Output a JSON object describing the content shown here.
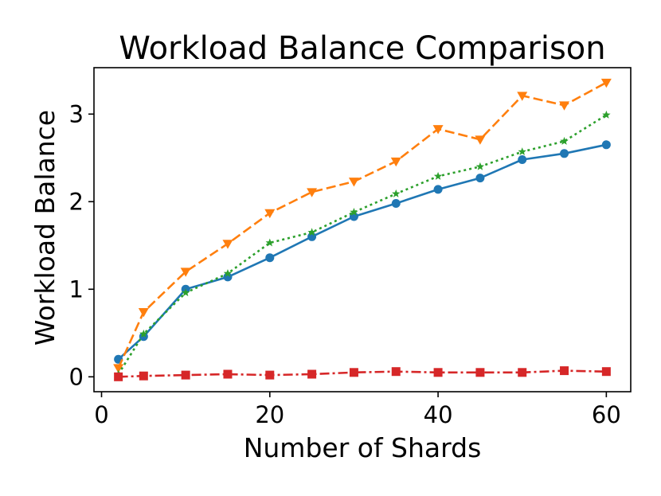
{
  "chart_data": {
    "type": "line",
    "title": "Workload Balance Comparison",
    "xlabel": "Number of Shards",
    "ylabel": "Workload Balance",
    "xlim": [
      -0.9,
      62.9
    ],
    "ylim": [
      -0.17,
      3.53
    ],
    "xticks": [
      0,
      20,
      40,
      60
    ],
    "yticks": [
      0,
      1,
      2,
      3
    ],
    "grid": false,
    "legend": "none",
    "x": [
      2,
      5,
      10,
      15,
      20,
      25,
      30,
      35,
      40,
      45,
      50,
      55,
      60
    ],
    "series": [
      {
        "color": "#1f77b4",
        "line_style": "solid",
        "marker": "circle",
        "values": [
          0.2,
          0.46,
          1.0,
          1.14,
          1.36,
          1.6,
          1.83,
          1.98,
          2.14,
          2.27,
          2.48,
          2.55,
          2.65
        ]
      },
      {
        "color": "#ff7f0e",
        "line_style": "dashed",
        "marker": "triangle-down",
        "values": [
          0.1,
          0.74,
          1.2,
          1.52,
          1.87,
          2.11,
          2.23,
          2.46,
          2.83,
          2.71,
          3.21,
          3.1,
          3.36
        ]
      },
      {
        "color": "#2ca02c",
        "line_style": "dotted",
        "marker": "star",
        "values": [
          0.03,
          0.49,
          0.96,
          1.18,
          1.53,
          1.65,
          1.88,
          2.09,
          2.29,
          2.4,
          2.57,
          2.69,
          2.99
        ]
      },
      {
        "color": "#d62728",
        "line_style": "dashdot",
        "marker": "square",
        "values": [
          0.0,
          0.01,
          0.02,
          0.03,
          0.02,
          0.03,
          0.05,
          0.06,
          0.05,
          0.05,
          0.05,
          0.07,
          0.06
        ]
      }
    ]
  }
}
